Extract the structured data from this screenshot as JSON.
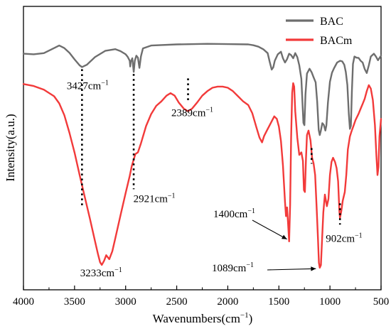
{
  "chart_data": {
    "type": "line",
    "xlabel": "Wavenumbers(cm",
    "xlabel_sup": "−1",
    "xlabel_suffix": ")",
    "ylabel": "Intensity(a.u.)",
    "x_reversed": true,
    "xlim": [
      4000,
      500
    ],
    "ylim": [
      0,
      100
    ],
    "y_ticks_shown": false,
    "legend_position": "top-right",
    "x_ticks": [
      4000,
      3500,
      3000,
      2500,
      2000,
      1500,
      1000,
      500
    ],
    "x_tick_labels": [
      "4000",
      "3500",
      "3000",
      "2500",
      "2000",
      "1500",
      "1000",
      "500"
    ],
    "series": [
      {
        "name": "BAC",
        "color": "#6e6e6e",
        "points": [
          [
            4000,
            83.3
          ],
          [
            3900,
            83.1
          ],
          [
            3800,
            83.5
          ],
          [
            3700,
            85.3
          ],
          [
            3650,
            86.2
          ],
          [
            3600,
            85.3
          ],
          [
            3550,
            83.6
          ],
          [
            3500,
            81.3
          ],
          [
            3450,
            79.2
          ],
          [
            3427,
            78.6
          ],
          [
            3380,
            79.4
          ],
          [
            3300,
            82.1
          ],
          [
            3200,
            84.3
          ],
          [
            3100,
            84.9
          ],
          [
            3050,
            84.2
          ],
          [
            3000,
            83.1
          ],
          [
            2980,
            82.2
          ],
          [
            2960,
            80.8
          ],
          [
            2955,
            78.8
          ],
          [
            2950,
            80.4
          ],
          [
            2935,
            81.7
          ],
          [
            2921,
            76.9
          ],
          [
            2910,
            80.8
          ],
          [
            2895,
            82.6
          ],
          [
            2880,
            81.9
          ],
          [
            2865,
            78.3
          ],
          [
            2850,
            82.4
          ],
          [
            2830,
            85.2
          ],
          [
            2750,
            86.2
          ],
          [
            2500,
            86.6
          ],
          [
            2200,
            86.8
          ],
          [
            2000,
            86.7
          ],
          [
            1800,
            86.6
          ],
          [
            1750,
            86.3
          ],
          [
            1700,
            85.8
          ],
          [
            1650,
            84.8
          ],
          [
            1610,
            83.5
          ],
          [
            1590,
            80.4
          ],
          [
            1570,
            77.7
          ],
          [
            1555,
            78.5
          ],
          [
            1540,
            80.8
          ],
          [
            1510,
            83.1
          ],
          [
            1480,
            84.0
          ],
          [
            1460,
            81.7
          ],
          [
            1440,
            80.2
          ],
          [
            1420,
            81.4
          ],
          [
            1400,
            83.3
          ],
          [
            1380,
            82.8
          ],
          [
            1360,
            81.7
          ],
          [
            1340,
            83.5
          ],
          [
            1320,
            82.1
          ],
          [
            1300,
            79.2
          ],
          [
            1280,
            74.4
          ],
          [
            1260,
            58.9
          ],
          [
            1250,
            58.1
          ],
          [
            1240,
            69.0
          ],
          [
            1225,
            76.3
          ],
          [
            1200,
            78.0
          ],
          [
            1180,
            76.8
          ],
          [
            1160,
            75.0
          ],
          [
            1140,
            73.2
          ],
          [
            1125,
            66.3
          ],
          [
            1110,
            56.4
          ],
          [
            1100,
            54.6
          ],
          [
            1090,
            56.0
          ],
          [
            1075,
            58.8
          ],
          [
            1060,
            58.2
          ],
          [
            1045,
            56.2
          ],
          [
            1035,
            58.0
          ],
          [
            1020,
            66.1
          ],
          [
            1000,
            73.4
          ],
          [
            980,
            76.6
          ],
          [
            960,
            78.2
          ],
          [
            930,
            80.2
          ],
          [
            900,
            80.8
          ],
          [
            880,
            80.6
          ],
          [
            860,
            79.4
          ],
          [
            845,
            76.9
          ],
          [
            830,
            72.3
          ],
          [
            815,
            62.0
          ],
          [
            805,
            56.8
          ],
          [
            795,
            57.9
          ],
          [
            785,
            70.1
          ],
          [
            775,
            79.7
          ],
          [
            760,
            82.3
          ],
          [
            740,
            81.9
          ],
          [
            720,
            81.8
          ],
          [
            700,
            80.8
          ],
          [
            680,
            80.2
          ],
          [
            660,
            77.9
          ],
          [
            640,
            76.5
          ],
          [
            620,
            79.2
          ],
          [
            600,
            82.3
          ],
          [
            570,
            83.3
          ],
          [
            550,
            82.3
          ],
          [
            530,
            81.0
          ],
          [
            500,
            82.6
          ]
        ]
      },
      {
        "name": "BACm",
        "color": "#f23a3a",
        "points": [
          [
            4000,
            72.6
          ],
          [
            3900,
            71.9
          ],
          [
            3800,
            70.6
          ],
          [
            3700,
            68.3
          ],
          [
            3650,
            65.8
          ],
          [
            3600,
            61.6
          ],
          [
            3550,
            55.4
          ],
          [
            3500,
            48.4
          ],
          [
            3450,
            40.5
          ],
          [
            3400,
            32.8
          ],
          [
            3350,
            25.2
          ],
          [
            3300,
            17.2
          ],
          [
            3270,
            12.5
          ],
          [
            3250,
            9.7
          ],
          [
            3233,
            8.8
          ],
          [
            3210,
            10.3
          ],
          [
            3190,
            12.2
          ],
          [
            3160,
            10.8
          ],
          [
            3130,
            13.6
          ],
          [
            3100,
            18.3
          ],
          [
            3050,
            26.3
          ],
          [
            3000,
            34.1
          ],
          [
            2960,
            40.2
          ],
          [
            2940,
            43.6
          ],
          [
            2921,
            46.0
          ],
          [
            2905,
            47.9
          ],
          [
            2880,
            48.5
          ],
          [
            2850,
            51.7
          ],
          [
            2800,
            57.8
          ],
          [
            2750,
            62.0
          ],
          [
            2700,
            64.9
          ],
          [
            2650,
            66.5
          ],
          [
            2600,
            68.5
          ],
          [
            2560,
            69.4
          ],
          [
            2520,
            68.5
          ],
          [
            2480,
            66.1
          ],
          [
            2430,
            63.9
          ],
          [
            2389,
            63.0
          ],
          [
            2350,
            63.9
          ],
          [
            2300,
            66.1
          ],
          [
            2250,
            68.5
          ],
          [
            2200,
            70.1
          ],
          [
            2150,
            71.3
          ],
          [
            2100,
            71.7
          ],
          [
            2050,
            71.7
          ],
          [
            2000,
            71.3
          ],
          [
            1950,
            70.1
          ],
          [
            1900,
            68.3
          ],
          [
            1850,
            66.5
          ],
          [
            1800,
            65.2
          ],
          [
            1760,
            62.3
          ],
          [
            1720,
            57.3
          ],
          [
            1690,
            53.7
          ],
          [
            1665,
            52.0
          ],
          [
            1645,
            54.2
          ],
          [
            1620,
            56.0
          ],
          [
            1580,
            58.8
          ],
          [
            1545,
            61.2
          ],
          [
            1520,
            60.3
          ],
          [
            1500,
            57.6
          ],
          [
            1480,
            52.5
          ],
          [
            1460,
            43.9
          ],
          [
            1440,
            31.0
          ],
          [
            1430,
            26.0
          ],
          [
            1420,
            29.1
          ],
          [
            1410,
            23.5
          ],
          [
            1400,
            17.1
          ],
          [
            1390,
            29.8
          ],
          [
            1380,
            53.7
          ],
          [
            1370,
            69.5
          ],
          [
            1360,
            72.9
          ],
          [
            1350,
            71.7
          ],
          [
            1340,
            63.0
          ],
          [
            1320,
            53.7
          ],
          [
            1300,
            47.6
          ],
          [
            1280,
            48.5
          ],
          [
            1265,
            45.5
          ],
          [
            1255,
            35.2
          ],
          [
            1245,
            34.5
          ],
          [
            1235,
            46.2
          ],
          [
            1225,
            54.6
          ],
          [
            1210,
            56.2
          ],
          [
            1190,
            52.7
          ],
          [
            1175,
            46.6
          ],
          [
            1160,
            44.6
          ],
          [
            1145,
            40.5
          ],
          [
            1130,
            28.4
          ],
          [
            1118,
            18.5
          ],
          [
            1108,
            9.5
          ],
          [
            1100,
            7.8
          ],
          [
            1089,
            8.7
          ],
          [
            1080,
            15.3
          ],
          [
            1065,
            27.3
          ],
          [
            1050,
            33.6
          ],
          [
            1030,
            29.5
          ],
          [
            1015,
            32.0
          ],
          [
            1000,
            40.5
          ],
          [
            985,
            45.1
          ],
          [
            970,
            46.6
          ],
          [
            950,
            45.1
          ],
          [
            935,
            42.9
          ],
          [
            920,
            38.3
          ],
          [
            908,
            27.6
          ],
          [
            902,
            25.4
          ],
          [
            890,
            27.6
          ],
          [
            875,
            31.4
          ],
          [
            855,
            34.5
          ],
          [
            840,
            40.5
          ],
          [
            825,
            49.5
          ],
          [
            805,
            54.1
          ],
          [
            790,
            55.8
          ],
          [
            770,
            57.8
          ],
          [
            750,
            59.9
          ],
          [
            720,
            62.1
          ],
          [
            700,
            63.9
          ],
          [
            680,
            65.6
          ],
          [
            660,
            67.4
          ],
          [
            640,
            70.1
          ],
          [
            620,
            72.2
          ],
          [
            600,
            71.0
          ],
          [
            580,
            66.9
          ],
          [
            560,
            58.1
          ],
          [
            545,
            47.2
          ],
          [
            535,
            40.5
          ],
          [
            525,
            43.4
          ],
          [
            515,
            54.2
          ],
          [
            500,
            60.3
          ]
        ]
      }
    ],
    "annotations": [
      {
        "text": "3427cm",
        "sup": "−1",
        "wavenumber": 3427,
        "series": "BAC",
        "marker": "dotted-line",
        "line_to": 29.0
      },
      {
        "text": "2921cm",
        "sup": "−1",
        "wavenumber": 2921,
        "series": "BAC",
        "marker": "dotted-line",
        "line_to": 35.5
      },
      {
        "text": "2389cm",
        "sup": "−1",
        "wavenumber": 2389,
        "series": "BACm",
        "marker": "dotted-line",
        "line_from": 74.6,
        "line_to": 66.5
      },
      {
        "text": "3233cm",
        "sup": "−1",
        "wavenumber": 3233,
        "series": "BACm",
        "marker": "none"
      },
      {
        "text": "1400cm",
        "sup": "−1",
        "wavenumber": 1400,
        "series": "BACm",
        "marker": "arrow"
      },
      {
        "text": "1089cm",
        "sup": "−1",
        "wavenumber": 1089,
        "series": "BACm",
        "marker": "arrow"
      },
      {
        "text": "902cm",
        "sup": "−1",
        "wavenumber": 902,
        "series": "BACm",
        "marker": "dotted-line",
        "line_from": 30.5,
        "line_to": 23.0
      },
      {
        "text": "1180",
        "wavenumber": 1180,
        "series": "BACm",
        "marker": "dotted-line-only",
        "line_from": 50.0,
        "line_to": 44.5
      }
    ]
  }
}
